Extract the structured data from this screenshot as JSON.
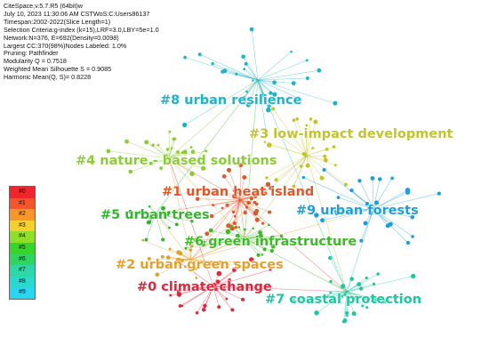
{
  "info_lines": [
    "CiteSpace,v.5.7.R5 (64bit)w",
    "July 10,  2023 11:30:06 AM CSTWoS:C:Users86137",
    "Timespan:2002-2022(Slice Length=1)",
    "Selection Criteria:g-index (k=15),LRF=3.0,LBY=5e=1.0",
    "Network:N=376,  E=692(Density=0.0098)",
    "Largest CC:370(98%)Nodes Labeled: 1.0%",
    "Pruning: Pathfinder",
    "Modularity Q = 0.7518",
    "Weighted Mean Silhouette S = 0.9085",
    "Harmonic Mean(Q,  S)= 0.8228"
  ],
  "clusters": [
    {
      "id": "c8",
      "label": "#8 urban resilience",
      "color": "#1fb3c6"
    },
    {
      "id": "c3",
      "label": "#3 low-impact development",
      "color": "#c2c42e"
    },
    {
      "id": "c4",
      "label": "#4 nature - based solutions",
      "color": "#8ccc3a"
    },
    {
      "id": "c1",
      "label": "#1 urban heat island",
      "color": "#e0572a"
    },
    {
      "id": "c9",
      "label": "#9 urban forests",
      "color": "#1e9fd8"
    },
    {
      "id": "c5",
      "label": "#5 urban trees",
      "color": "#33b52e"
    },
    {
      "id": "c6",
      "label": "#6 green infrastructure",
      "color": "#3cbb25"
    },
    {
      "id": "c2",
      "label": "#2 urban green spaces",
      "color": "#e2a12e"
    },
    {
      "id": "c0",
      "label": "#0 climate change",
      "color": "#e0263c"
    },
    {
      "id": "c7",
      "label": "#7 coastal protection",
      "color": "#1ec7a0"
    }
  ],
  "legend": [
    {
      "label": "#0",
      "color": "#f0262c"
    },
    {
      "label": "#1",
      "color": "#f3562b"
    },
    {
      "label": "#2",
      "color": "#f7972b"
    },
    {
      "label": "#3",
      "color": "#f4d02c"
    },
    {
      "label": "#4",
      "color": "#8fde2a"
    },
    {
      "label": "#5",
      "color": "#39d42b"
    },
    {
      "label": "#6",
      "color": "#2ed65f"
    },
    {
      "label": "#7",
      "color": "#2dd7a6"
    },
    {
      "label": "#8",
      "color": "#2ad8cf"
    },
    {
      "label": "#9",
      "color": "#2ad5ef"
    }
  ]
}
